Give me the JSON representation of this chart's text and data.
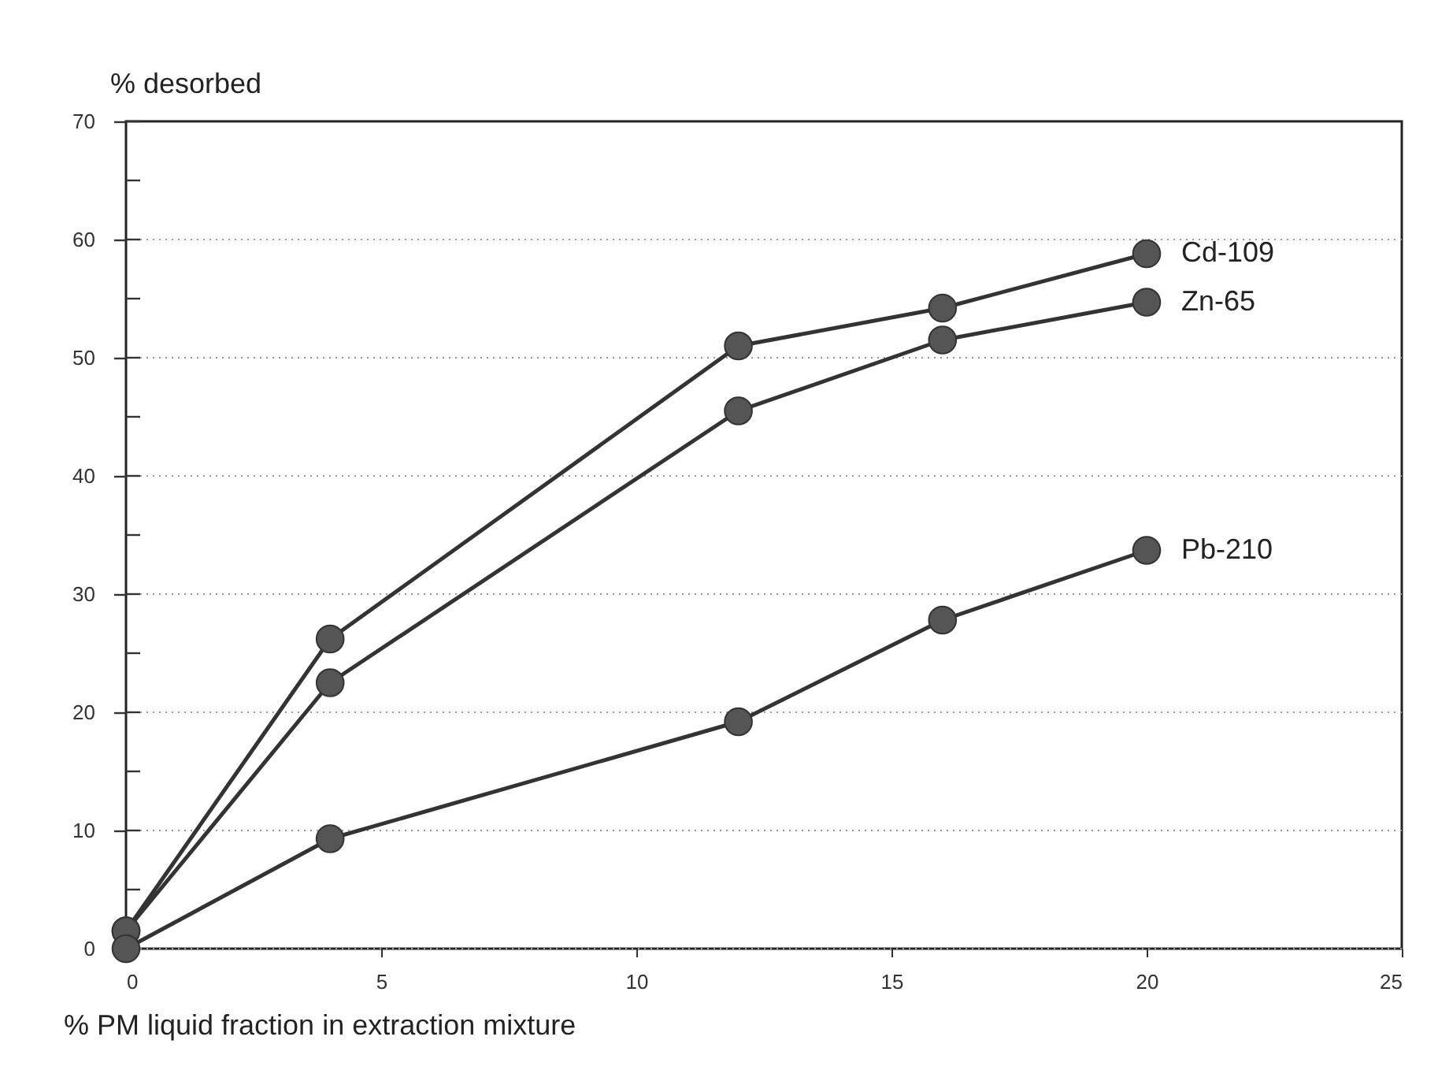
{
  "chart_data": {
    "type": "line",
    "ylabel": "% desorbed",
    "xlabel": "% PM liquid fraction in extraction mixture",
    "xlim": [
      0,
      25
    ],
    "xticks": [
      0,
      5,
      10,
      15,
      20,
      25
    ],
    "ylim": [
      0,
      70
    ],
    "yticks": [
      0,
      {
        "value": 5,
        "label": null
      },
      10,
      {
        "value": 15,
        "label": null
      },
      20,
      {
        "value": 25,
        "label": null
      },
      30,
      {
        "value": 35,
        "label": null
      },
      40,
      {
        "value": 45,
        "label": null
      },
      50,
      {
        "value": 55,
        "label": null
      },
      60,
      {
        "value": 65,
        "label": null
      },
      70
    ],
    "grid": "y",
    "marker": "circle",
    "line_style": "solid",
    "series": [
      {
        "name": "Cd-109",
        "color": "#333333",
        "x": [
          0,
          4,
          12,
          16,
          20
        ],
        "values": [
          1.5,
          26.2,
          51,
          54.2,
          58.8
        ]
      },
      {
        "name": "Zn-65",
        "color": "#333333",
        "x": [
          0,
          4,
          12,
          16,
          20
        ],
        "values": [
          1.5,
          22.5,
          45.5,
          51.5,
          54.7
        ]
      },
      {
        "name": "Pb-210",
        "color": "#333333",
        "x": [
          0,
          4,
          12,
          16,
          20
        ],
        "values": [
          0,
          9.3,
          19.2,
          27.8,
          33.7
        ]
      }
    ]
  }
}
